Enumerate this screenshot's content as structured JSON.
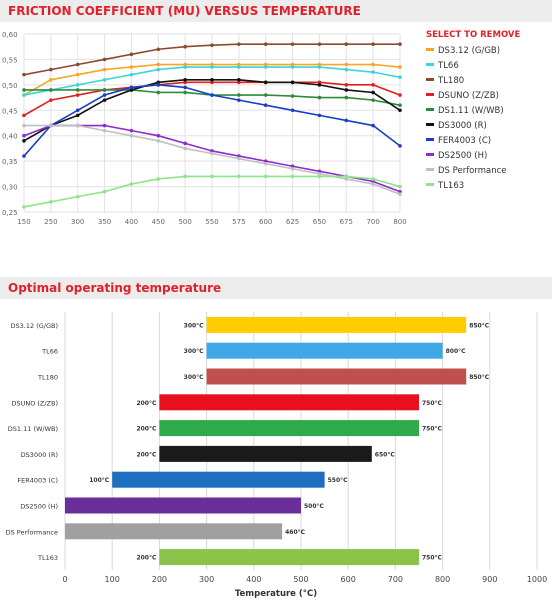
{
  "chart_data": [
    {
      "type": "line",
      "title": "FRICTION COEFFICIENT (MU) VERSUS TEMPERATURE",
      "legend_title": "SELECT TO REMOVE",
      "legend_position": "right",
      "grid": true,
      "x": [
        150,
        250,
        300,
        350,
        400,
        450,
        500,
        550,
        575,
        600,
        625,
        650,
        675,
        700,
        800
      ],
      "xticks": [
        "150",
        "250",
        "300",
        "350",
        "400",
        "450",
        "500",
        "550",
        "575",
        "600",
        "625",
        "650",
        "675",
        "700",
        "800"
      ],
      "yticks": [
        "0,25",
        "0,30",
        "0,35",
        "0,40",
        "0,45",
        "0,50",
        "0,55",
        "0,60"
      ],
      "ylim": [
        0.25,
        0.6
      ],
      "series": [
        {
          "name": "DS3.12 (G/GB)",
          "color": "#f5a623",
          "values": [
            0.48,
            0.51,
            0.52,
            0.53,
            0.535,
            0.54,
            0.54,
            0.54,
            0.54,
            0.54,
            0.54,
            0.54,
            0.54,
            0.54,
            0.535
          ]
        },
        {
          "name": "TL66",
          "color": "#3ad4dc",
          "values": [
            0.48,
            0.49,
            0.5,
            0.51,
            0.52,
            0.53,
            0.535,
            0.535,
            0.535,
            0.535,
            0.535,
            0.535,
            0.53,
            0.525,
            0.515
          ]
        },
        {
          "name": "TL180",
          "color": "#8b4a2f",
          "values": [
            0.52,
            0.53,
            0.54,
            0.55,
            0.56,
            0.57,
            0.575,
            0.578,
            0.58,
            0.58,
            0.58,
            0.58,
            0.58,
            0.58,
            0.58
          ]
        },
        {
          "name": "DSUNO (Z/ZB)",
          "color": "#e02020",
          "values": [
            0.44,
            0.47,
            0.48,
            0.49,
            0.495,
            0.5,
            0.505,
            0.505,
            0.505,
            0.505,
            0.505,
            0.505,
            0.5,
            0.5,
            0.48
          ]
        },
        {
          "name": "DS1.11 (W/WB)",
          "color": "#2e8b3a",
          "values": [
            0.49,
            0.49,
            0.49,
            0.49,
            0.49,
            0.485,
            0.485,
            0.48,
            0.48,
            0.48,
            0.478,
            0.475,
            0.475,
            0.47,
            0.46
          ]
        },
        {
          "name": "DS3000 (R)",
          "color": "#111111",
          "values": [
            0.39,
            0.42,
            0.44,
            0.47,
            0.49,
            0.505,
            0.51,
            0.51,
            0.51,
            0.505,
            0.505,
            0.5,
            0.49,
            0.485,
            0.45
          ]
        },
        {
          "name": "FER4003 (C)",
          "color": "#1a3ec8",
          "values": [
            0.36,
            0.42,
            0.45,
            0.48,
            0.495,
            0.5,
            0.495,
            0.48,
            0.47,
            0.46,
            0.45,
            0.44,
            0.43,
            0.42,
            0.38
          ]
        },
        {
          "name": "DS2500 (H)",
          "color": "#8e2bd0",
          "values": [
            0.4,
            0.42,
            0.42,
            0.42,
            0.41,
            0.4,
            0.385,
            0.37,
            0.36,
            0.35,
            0.34,
            0.33,
            0.32,
            0.31,
            0.29
          ]
        },
        {
          "name": "DS Performance",
          "color": "#c0c0c0",
          "values": [
            0.42,
            0.42,
            0.42,
            0.41,
            0.4,
            0.39,
            0.375,
            0.365,
            0.355,
            0.345,
            0.335,
            0.325,
            0.315,
            0.305,
            0.285
          ]
        },
        {
          "name": "TL163",
          "color": "#8ee48a",
          "values": [
            0.26,
            0.27,
            0.28,
            0.29,
            0.305,
            0.315,
            0.32,
            0.32,
            0.32,
            0.32,
            0.32,
            0.32,
            0.32,
            0.315,
            0.3
          ]
        }
      ]
    },
    {
      "type": "bar",
      "orientation": "horizontal",
      "title": "Optimal operating temperature",
      "xlabel": "Temperature (°C)",
      "xlim": [
        0,
        1000
      ],
      "xticks": [
        "0",
        "100",
        "200",
        "300",
        "400",
        "500",
        "600",
        "700",
        "800",
        "900",
        "1000"
      ],
      "grid": true,
      "categories": [
        "DS3.12 (G/GB)",
        "TL66",
        "TL180",
        "DSUNO (Z/ZB)",
        "DS1.11 (W/WB)",
        "DS3000 (R)",
        "FER4003 (C)",
        "DS2500 (H)",
        "DS Performance",
        "TL163"
      ],
      "bars": [
        {
          "start": 300,
          "end": 850,
          "start_label": "300°C",
          "end_label": "850°C",
          "color": "#ffcc00"
        },
        {
          "start": 300,
          "end": 800,
          "start_label": "300°C",
          "end_label": "800°C",
          "color": "#3ea8e6"
        },
        {
          "start": 300,
          "end": 850,
          "start_label": "300°C",
          "end_label": "850°C",
          "color": "#c0504d"
        },
        {
          "start": 200,
          "end": 750,
          "start_label": "200°C",
          "end_label": "750°C",
          "color": "#e8101e"
        },
        {
          "start": 200,
          "end": 750,
          "start_label": "200°C",
          "end_label": "750°C",
          "color": "#2eaa4a"
        },
        {
          "start": 200,
          "end": 650,
          "start_label": "200°C",
          "end_label": "650°C",
          "color": "#1a1a1a"
        },
        {
          "start": 100,
          "end": 550,
          "start_label": "100°C",
          "end_label": "550°C",
          "color": "#1f6fc0"
        },
        {
          "start": 0,
          "end": 500,
          "start_label": "",
          "end_label": "500°C",
          "color": "#6a2e9a"
        },
        {
          "start": 0,
          "end": 460,
          "start_label": "",
          "end_label": "460°C",
          "color": "#a0a0a0"
        },
        {
          "start": 200,
          "end": 750,
          "start_label": "200°C",
          "end_label": "750°C",
          "color": "#8bc34a"
        }
      ]
    }
  ]
}
